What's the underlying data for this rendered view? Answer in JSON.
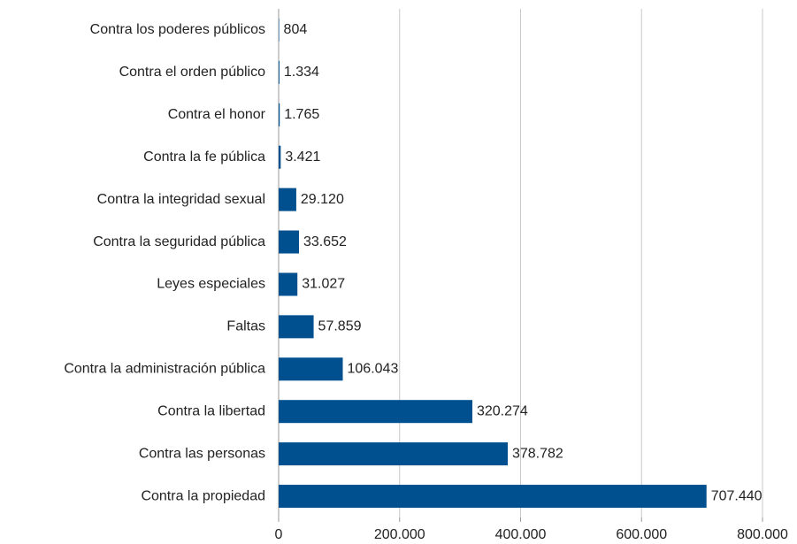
{
  "chart_data": {
    "type": "barh",
    "categories": [
      "Contra los poderes públicos",
      "Contra el orden público",
      "Contra el honor",
      "Contra la fe pública",
      "Contra la integridad sexual",
      "Contra la seguridad pública",
      "Leyes especiales",
      "Faltas",
      "Contra la administración pública",
      "Contra la libertad",
      "Contra las personas",
      "Contra la propiedad"
    ],
    "values": [
      804,
      1334,
      1765,
      3421,
      29120,
      33652,
      31027,
      57859,
      106043,
      320274,
      378782,
      707440
    ],
    "value_labels": [
      "804",
      "1.334",
      "1.765",
      "3.421",
      "29.120",
      "33.652",
      "31.027",
      "57.859",
      "106.043",
      "320.274",
      "378.782",
      "707.440"
    ],
    "color": "#004f8f",
    "xlim": [
      0,
      800000
    ],
    "xticks": [
      0,
      {
        "value": 200000,
        "label": "200.000"
      },
      {
        "value": 400000,
        "label": "400.000"
      },
      {
        "value": 600000,
        "label": "600.000"
      },
      {
        "value": 800000,
        "label": "800.000"
      }
    ],
    "grid": true
  }
}
